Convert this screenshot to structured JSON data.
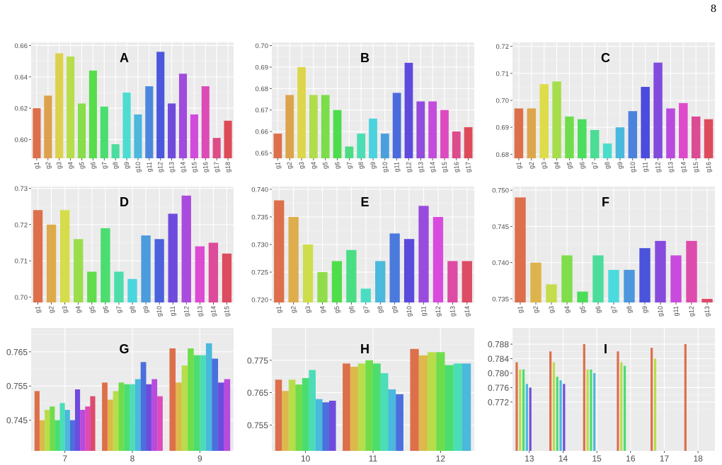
{
  "page": {
    "number": "8"
  },
  "chart_data": [
    {
      "id": "A",
      "type": "bar",
      "label": "A",
      "categories": [
        "g1",
        "g2",
        "g3",
        "g4",
        "g5",
        "g6",
        "g7",
        "g8",
        "g9",
        "g10",
        "g11",
        "g12",
        "g13",
        "g14",
        "g15",
        "g16",
        "g17",
        "g18"
      ],
      "values": [
        0.62,
        0.628,
        0.655,
        0.653,
        0.623,
        0.644,
        0.621,
        0.597,
        0.63,
        0.616,
        0.634,
        0.656,
        0.623,
        0.642,
        0.616,
        0.634,
        0.601,
        0.612
      ],
      "ylim": [
        0.588,
        0.662
      ],
      "yticks": [
        0.6,
        0.62,
        0.64,
        0.66
      ],
      "ytick_labels": [
        "0.60",
        "0.62",
        "0.64",
        "0.66"
      ]
    },
    {
      "id": "B",
      "type": "bar",
      "label": "B",
      "categories": [
        "g1",
        "g2",
        "g3",
        "g4",
        "g5",
        "g6",
        "g7",
        "g8",
        "g9",
        "g10",
        "g11",
        "g12",
        "g13",
        "g14",
        "g15",
        "g16",
        "g17"
      ],
      "values": [
        0.659,
        0.677,
        0.69,
        0.677,
        0.677,
        0.67,
        0.653,
        0.659,
        0.666,
        0.659,
        0.678,
        0.692,
        0.674,
        0.674,
        0.67,
        0.66,
        0.662
      ],
      "ylim": [
        0.6475,
        0.7015
      ],
      "yticks": [
        0.65,
        0.66,
        0.67,
        0.68,
        0.69,
        0.7
      ],
      "ytick_labels": [
        "0.65",
        "0.66",
        "0.67",
        "0.68",
        "0.69",
        "0.70"
      ]
    },
    {
      "id": "C",
      "type": "bar",
      "label": "C",
      "categories": [
        "g1",
        "g2",
        "g3",
        "g4",
        "g5",
        "g6",
        "g7",
        "g8",
        "g9",
        "g10",
        "g11",
        "g12",
        "g13",
        "g14",
        "g15",
        "g16"
      ],
      "values": [
        0.697,
        0.697,
        0.706,
        0.707,
        0.694,
        0.693,
        0.689,
        0.684,
        0.69,
        0.696,
        0.705,
        0.714,
        0.697,
        0.699,
        0.694,
        0.693
      ],
      "ylim": [
        0.6785,
        0.7215
      ],
      "yticks": [
        0.68,
        0.69,
        0.7,
        0.71,
        0.72
      ],
      "ytick_labels": [
        "0.68",
        "0.69",
        "0.70",
        "0.71",
        "0.72"
      ]
    },
    {
      "id": "D",
      "type": "bar",
      "label": "D",
      "categories": [
        "g1",
        "g2",
        "g3",
        "g4",
        "g5",
        "g6",
        "g7",
        "g8",
        "g9",
        "g10",
        "g11",
        "g12",
        "g13",
        "g14",
        "g15"
      ],
      "values": [
        0.724,
        0.72,
        0.724,
        0.716,
        0.707,
        0.719,
        0.707,
        0.705,
        0.717,
        0.716,
        0.723,
        0.728,
        0.714,
        0.715,
        0.712
      ],
      "ylim": [
        0.6985,
        0.7305
      ],
      "yticks": [
        0.7,
        0.71,
        0.72,
        0.73
      ],
      "ytick_labels": [
        "0.70",
        "0.71",
        "0.72",
        "0.73"
      ]
    },
    {
      "id": "E",
      "type": "bar",
      "label": "E",
      "categories": [
        "g1",
        "g2",
        "g3",
        "g4",
        "g5",
        "g6",
        "g7",
        "g8",
        "g9",
        "g10",
        "g11",
        "g12",
        "g13",
        "g14"
      ],
      "values": [
        0.738,
        0.735,
        0.73,
        0.725,
        0.727,
        0.729,
        0.722,
        0.727,
        0.732,
        0.731,
        0.737,
        0.735,
        0.727,
        0.727
      ],
      "ylim": [
        0.7195,
        0.7405
      ],
      "yticks": [
        0.72,
        0.725,
        0.73,
        0.735,
        0.74
      ],
      "ytick_labels": [
        "0.720",
        "0.725",
        "0.730",
        "0.735",
        "0.740"
      ]
    },
    {
      "id": "F",
      "type": "bar",
      "label": "F",
      "categories": [
        "g1",
        "g2",
        "g3",
        "g4",
        "g5",
        "g6",
        "g7",
        "g8",
        "g9",
        "g10",
        "g11",
        "g12",
        "g13"
      ],
      "values": [
        0.749,
        0.74,
        0.737,
        0.741,
        0.736,
        0.741,
        0.739,
        0.739,
        0.742,
        0.743,
        0.741,
        0.743,
        0.735
      ],
      "ylim": [
        0.7345,
        0.7505
      ],
      "yticks": [
        0.735,
        0.74,
        0.745,
        0.75
      ],
      "ytick_labels": [
        "0.735",
        "0.740",
        "0.745",
        "0.750"
      ]
    },
    {
      "id": "G",
      "type": "bar-grouped",
      "label": "G",
      "categories": [
        "7",
        "8",
        "9"
      ],
      "group_values": [
        [
          0.7535,
          0.745,
          0.748,
          0.749,
          0.745,
          0.75,
          0.748,
          0.745,
          0.754,
          0.748,
          0.749,
          0.752
        ],
        [
          0.756,
          0.751,
          0.7535,
          0.756,
          0.7555,
          0.7555,
          0.757,
          0.762,
          0.7555,
          0.757,
          0.752
        ],
        [
          0.766,
          0.756,
          0.761,
          0.766,
          0.764,
          0.764,
          0.7675,
          0.763,
          0.756,
          0.757
        ]
      ],
      "ylim": [
        0.736,
        0.772
      ],
      "yticks": [
        0.745,
        0.755,
        0.765
      ],
      "ytick_labels": [
        "0.745",
        "0.755",
        "0.765"
      ]
    },
    {
      "id": "H",
      "type": "bar-grouped",
      "label": "H",
      "categories": [
        "10",
        "11",
        "12"
      ],
      "group_values": [
        [
          0.769,
          0.7655,
          0.769,
          0.7675,
          0.7695,
          0.772,
          0.763,
          0.762,
          0.7625
        ],
        [
          0.774,
          0.773,
          0.774,
          0.775,
          0.774,
          0.771,
          0.766,
          0.7645
        ],
        [
          0.7785,
          0.7765,
          0.7775,
          0.7775,
          0.7735,
          0.774,
          0.774
        ]
      ],
      "ylim": [
        0.747,
        0.785
      ],
      "yticks": [
        0.755,
        0.765,
        0.775
      ],
      "ytick_labels": [
        "0.755",
        "0.765",
        "0.775"
      ]
    },
    {
      "id": "I",
      "type": "bar-grouped",
      "label": "I",
      "categories": [
        "13",
        "14",
        "15",
        "16",
        "17",
        "18"
      ],
      "group_values": [
        [
          0.783,
          0.781,
          0.781,
          0.777,
          0.776
        ],
        [
          0.786,
          0.783,
          0.779,
          0.778,
          0.777
        ],
        [
          0.788,
          0.781,
          0.781,
          0.78
        ],
        [
          0.786,
          0.783,
          0.782
        ],
        [
          0.787,
          0.784
        ],
        [
          0.788
        ]
      ],
      "ylim": [
        0.7585,
        0.7925
      ],
      "yticks": [
        0.772,
        0.776,
        0.78,
        0.784,
        0.788
      ],
      "ytick_labels": [
        "0.772",
        "0.776",
        "0.780",
        "0.784",
        "0.788"
      ]
    }
  ]
}
